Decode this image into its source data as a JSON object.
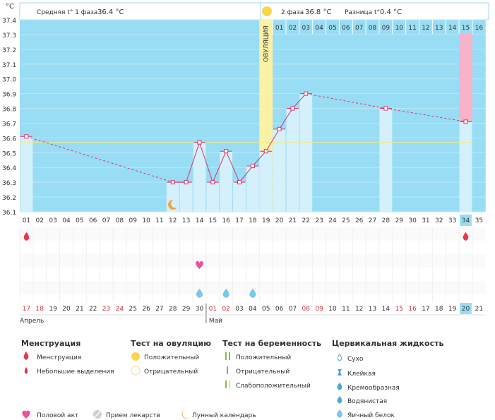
{
  "header": {
    "unit": "°C",
    "phase1_label": "Средняя t° 1 фаза",
    "phase1_value": "36.4 °C",
    "phase2_label": "2 фаза",
    "phase2_value": "36.8 °C",
    "diff_label": "Разница t°",
    "diff_value": "0.4 °C",
    "ovulation_label": "ОВУЛЯЦИЯ"
  },
  "colors": {
    "chart_bg": "#99ddf4",
    "bar": "#d4f0fb",
    "line": "#d6336c",
    "ovulation": "#fbf2a6",
    "menstruation": "#e8384f",
    "pink_col": "#f6b3c9",
    "coverline": "#f3e88a",
    "header_line": "#9fd7ef"
  },
  "chart_data": {
    "type": "bar",
    "ylabel": "°C",
    "ylim": [
      36.1,
      37.4
    ],
    "yticks": [
      "36.1",
      "36.2",
      "36.3",
      "36.4",
      "36.5",
      "36.6",
      "36.7",
      "36.8",
      "36.9",
      "37.0",
      "37.1",
      "37.2",
      "37.3",
      "37.4"
    ],
    "cycle_days": [
      "01",
      "02",
      "03",
      "04",
      "05",
      "06",
      "07",
      "08",
      "09",
      "10",
      "11",
      "12",
      "13",
      "14",
      "15",
      "16",
      "17",
      "18",
      "19",
      "20",
      "21",
      "22",
      "23",
      "24",
      "25",
      "26",
      "27",
      "28",
      "29",
      "30",
      "31",
      "32",
      "33",
      "34",
      "35"
    ],
    "phase2_days": [
      "01",
      "02",
      "03",
      "04",
      "05",
      "06",
      "07",
      "08",
      "09",
      "10",
      "11",
      "12",
      "13",
      "14",
      "15",
      "16"
    ],
    "dates": [
      "17",
      "18",
      "19",
      "20",
      "21",
      "22",
      "23",
      "24",
      "25",
      "26",
      "27",
      "28",
      "29",
      "30",
      "01",
      "02",
      "03",
      "04",
      "05",
      "06",
      "07",
      "08",
      "09",
      "10",
      "11",
      "12",
      "13",
      "14",
      "15",
      "16",
      "17",
      "18",
      "19",
      "20",
      "21"
    ],
    "weekend_dates_idx": [
      0,
      1,
      6,
      7,
      14,
      15,
      21,
      22,
      28,
      29
    ],
    "months": [
      {
        "label": "Апрель",
        "start": 0
      },
      {
        "label": "Май",
        "start": 14
      }
    ],
    "today_index": 33,
    "ovulation_index": 18,
    "coverline": 36.57,
    "points": [
      {
        "day": 1,
        "temp": 36.61
      },
      {
        "day": 12,
        "temp": 36.3
      },
      {
        "day": 13,
        "temp": 36.3
      },
      {
        "day": 14,
        "temp": 36.57
      },
      {
        "day": 15,
        "temp": 36.3
      },
      {
        "day": 16,
        "temp": 36.51
      },
      {
        "day": 17,
        "temp": 36.3
      },
      {
        "day": 18,
        "temp": 36.41
      },
      {
        "day": 19,
        "temp": 36.51
      },
      {
        "day": 20,
        "temp": 36.66
      },
      {
        "day": 21,
        "temp": 36.8
      },
      {
        "day": 22,
        "temp": 36.9
      },
      {
        "day": 28,
        "temp": 36.8
      },
      {
        "day": 34,
        "temp": 36.71
      }
    ],
    "markers": {
      "menstruation_days": [
        1,
        34
      ],
      "sex_days": [
        14
      ],
      "egg_white_days": [
        14,
        16,
        18
      ],
      "lunar_days": [
        12
      ],
      "ovulation_test_positive_days": [
        19
      ]
    }
  },
  "legend": {
    "menstruation": {
      "title": "Менструация",
      "items": [
        "Менструация",
        "Небольшие выделения"
      ]
    },
    "ovulation_test": {
      "title": "Тест на овуляцию",
      "items": [
        "Положительный",
        "Отрицательный"
      ]
    },
    "pregnancy_test": {
      "title": "Тест на беременность",
      "items": [
        "Положительный",
        "Отрицательный",
        "Слабоположительный"
      ]
    },
    "cervical": {
      "title": "Цервикальная жидкость",
      "items": [
        "Сухо",
        "Клейкая",
        "Кремообразная",
        "Водянистая",
        "Яичный белок"
      ]
    },
    "bottom": [
      "Половой акт",
      "Прием лекарств",
      "Лунный календарь"
    ]
  }
}
